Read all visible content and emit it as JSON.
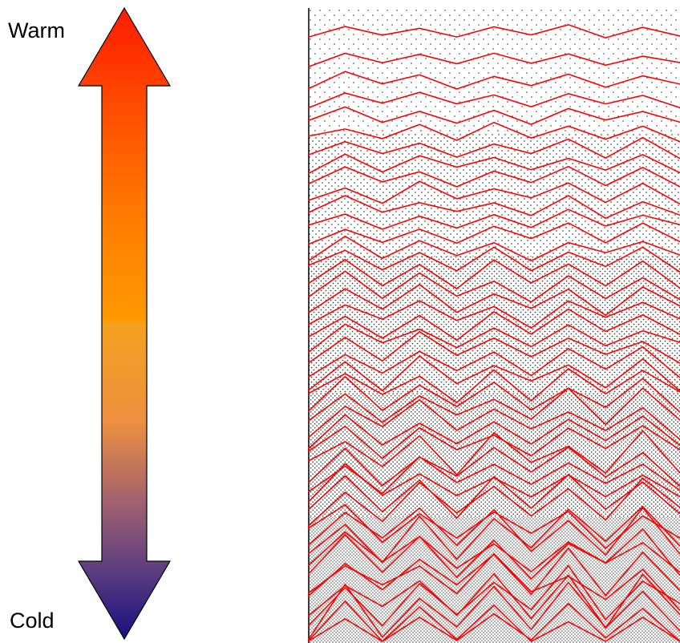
{
  "labels": {
    "top": "Warm",
    "bottom": "Cold"
  },
  "colors": {
    "warm_top": "#ff2200",
    "warm_mid": "#ff9900",
    "cool_mid": "#ee9933",
    "cold_bottom": "#1a1080",
    "line": "#ff0000",
    "dots": "#333333",
    "axis": "#000000"
  },
  "panel": {
    "line_count": 48,
    "dot_density_bands": [
      "sparse",
      "medium",
      "dense",
      "denser",
      "densest"
    ]
  }
}
